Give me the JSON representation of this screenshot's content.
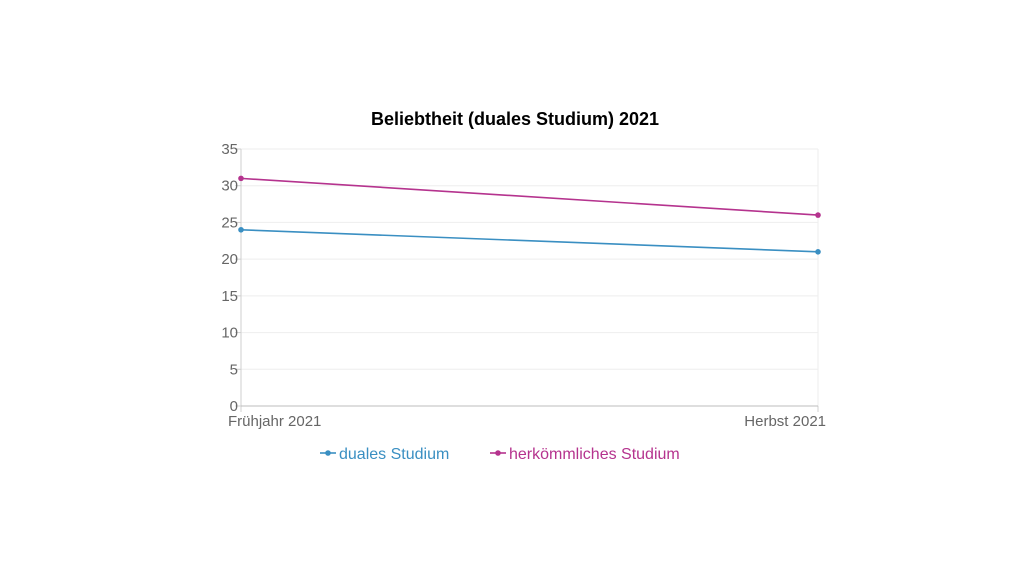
{
  "chart_data": {
    "type": "line",
    "title": "Beliebtheit (duales Studium) 2021",
    "xlabel": "",
    "ylabel": "",
    "categories": [
      "Frühjahr 2021",
      "Herbst 2021"
    ],
    "ylim": [
      0,
      35
    ],
    "yticks": [
      "0",
      "5",
      "10",
      "15",
      "20",
      "25",
      "30",
      "35"
    ],
    "grid": true,
    "legend": "bottom",
    "series": [
      {
        "name": "duales Studium",
        "color": "#3a8fc2",
        "values": [
          24,
          21
        ]
      },
      {
        "name": "herkömmliches Studium",
        "color": "#b5338e",
        "values": [
          31,
          26
        ]
      }
    ]
  }
}
